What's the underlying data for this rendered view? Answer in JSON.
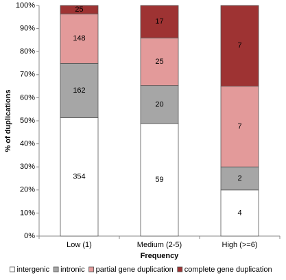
{
  "chart_data": {
    "type": "bar",
    "stacked": "percent",
    "xlabel": "Frequency",
    "ylabel": "% of duplications",
    "categories": [
      "Low (1)",
      "Medium (2-5)",
      "High (>=6)"
    ],
    "series": [
      {
        "name": "intergenic",
        "color": "#ffffff",
        "values": [
          354,
          59,
          4
        ]
      },
      {
        "name": "intronic",
        "color": "#a6a6a6",
        "values": [
          162,
          20,
          2
        ]
      },
      {
        "name": "partial gene duplication",
        "color": "#e39a9a",
        "values": [
          148,
          25,
          7
        ]
      },
      {
        "name": "complete gene duplication",
        "color": "#9e3333",
        "values": [
          25,
          17,
          7
        ]
      }
    ],
    "ylim": [
      0,
      100
    ],
    "yticks": [
      {
        "value": 0,
        "label": "0%"
      },
      {
        "value": 10,
        "label": "10%"
      },
      {
        "value": 20,
        "label": "20%"
      },
      {
        "value": 30,
        "label": "30%"
      },
      {
        "value": 40,
        "label": "40%"
      },
      {
        "value": 50,
        "label": "50%"
      },
      {
        "value": 60,
        "label": "60%"
      },
      {
        "value": 70,
        "label": "70%"
      },
      {
        "value": 80,
        "label": "80%"
      },
      {
        "value": 90,
        "label": "90%"
      },
      {
        "value": 100,
        "label": "100%"
      }
    ],
    "legend": "bottom"
  }
}
